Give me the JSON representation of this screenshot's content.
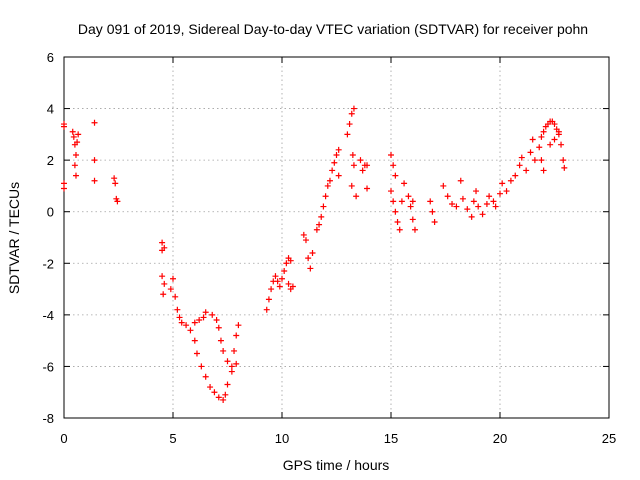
{
  "chart_data": {
    "type": "scatter",
    "title": "Day 091 of 2019, Sidereal Day-to-day VTEC variation (SDTVAR) for receiver pohn",
    "xlabel": "GPS time / hours",
    "ylabel": "SDTVAR / TECUs",
    "xlim": [
      0,
      25
    ],
    "ylim": [
      -8,
      6
    ],
    "x_ticks": [
      0,
      5,
      10,
      15,
      20,
      25
    ],
    "y_ticks": [
      -8,
      -6,
      -4,
      -2,
      0,
      2,
      4,
      6
    ],
    "grid": true,
    "marker": "+",
    "color": "#ff0000",
    "series": [
      {
        "name": "SDTVAR",
        "points": [
          [
            0.0,
            3.4
          ],
          [
            0.0,
            3.3
          ],
          [
            0.0,
            1.1
          ],
          [
            0.0,
            0.9
          ],
          [
            0.4,
            3.1
          ],
          [
            0.45,
            2.9
          ],
          [
            0.5,
            2.6
          ],
          [
            0.55,
            2.2
          ],
          [
            0.5,
            1.8
          ],
          [
            0.55,
            1.4
          ],
          [
            0.6,
            2.7
          ],
          [
            0.65,
            3.0
          ],
          [
            1.4,
            3.45
          ],
          [
            1.4,
            2.0
          ],
          [
            1.4,
            1.2
          ],
          [
            2.3,
            1.3
          ],
          [
            2.35,
            1.1
          ],
          [
            2.4,
            0.5
          ],
          [
            2.45,
            0.4
          ],
          [
            4.5,
            -1.2
          ],
          [
            4.5,
            -1.5
          ],
          [
            4.6,
            -1.4
          ],
          [
            4.5,
            -2.5
          ],
          [
            4.6,
            -2.8
          ],
          [
            4.55,
            -3.2
          ],
          [
            4.9,
            -3.0
          ],
          [
            5.0,
            -2.6
          ],
          [
            5.1,
            -3.3
          ],
          [
            5.2,
            -3.8
          ],
          [
            5.3,
            -4.1
          ],
          [
            5.4,
            -4.3
          ],
          [
            5.6,
            -4.4
          ],
          [
            5.8,
            -4.6
          ],
          [
            6.0,
            -5.0
          ],
          [
            6.1,
            -5.5
          ],
          [
            6.3,
            -6.0
          ],
          [
            6.5,
            -6.4
          ],
          [
            6.7,
            -6.8
          ],
          [
            6.9,
            -7.0
          ],
          [
            7.1,
            -7.2
          ],
          [
            7.3,
            -7.3
          ],
          [
            7.4,
            -7.1
          ],
          [
            7.5,
            -6.7
          ],
          [
            7.7,
            -6.0
          ],
          [
            7.8,
            -5.4
          ],
          [
            7.9,
            -4.8
          ],
          [
            8.0,
            -4.4
          ],
          [
            6.0,
            -4.3
          ],
          [
            6.2,
            -4.2
          ],
          [
            6.4,
            -4.1
          ],
          [
            6.5,
            -3.9
          ],
          [
            6.8,
            -4.0
          ],
          [
            7.0,
            -4.2
          ],
          [
            7.1,
            -4.5
          ],
          [
            7.2,
            -5.0
          ],
          [
            7.3,
            -5.4
          ],
          [
            7.5,
            -5.8
          ],
          [
            7.7,
            -6.2
          ],
          [
            7.9,
            -5.9
          ],
          [
            9.3,
            -3.8
          ],
          [
            9.4,
            -3.4
          ],
          [
            9.5,
            -3.0
          ],
          [
            9.6,
            -2.7
          ],
          [
            9.7,
            -2.5
          ],
          [
            9.8,
            -2.7
          ],
          [
            9.9,
            -2.9
          ],
          [
            10.0,
            -2.6
          ],
          [
            10.1,
            -2.3
          ],
          [
            10.2,
            -2.0
          ],
          [
            10.3,
            -1.8
          ],
          [
            10.4,
            -1.9
          ],
          [
            10.3,
            -2.8
          ],
          [
            10.4,
            -3.0
          ],
          [
            10.5,
            -2.9
          ],
          [
            11.0,
            -0.9
          ],
          [
            11.1,
            -1.1
          ],
          [
            11.2,
            -1.8
          ],
          [
            11.3,
            -2.2
          ],
          [
            11.4,
            -1.6
          ],
          [
            11.6,
            -0.7
          ],
          [
            11.7,
            -0.5
          ],
          [
            11.8,
            -0.2
          ],
          [
            11.9,
            0.2
          ],
          [
            12.0,
            0.6
          ],
          [
            12.1,
            1.0
          ],
          [
            12.2,
            1.2
          ],
          [
            12.3,
            1.6
          ],
          [
            12.4,
            1.9
          ],
          [
            12.5,
            2.2
          ],
          [
            12.6,
            2.4
          ],
          [
            12.6,
            1.4
          ],
          [
            13.0,
            3.0
          ],
          [
            13.1,
            3.4
          ],
          [
            13.2,
            3.8
          ],
          [
            13.3,
            4.0
          ],
          [
            13.25,
            2.2
          ],
          [
            13.3,
            1.8
          ],
          [
            13.2,
            1.0
          ],
          [
            13.4,
            0.6
          ],
          [
            13.6,
            2.0
          ],
          [
            13.7,
            1.6
          ],
          [
            13.8,
            1.8
          ],
          [
            13.9,
            1.8
          ],
          [
            13.9,
            0.9
          ],
          [
            15.0,
            2.2
          ],
          [
            15.1,
            1.8
          ],
          [
            15.2,
            1.4
          ],
          [
            15.0,
            0.8
          ],
          [
            15.1,
            0.4
          ],
          [
            15.2,
            0.0
          ],
          [
            15.3,
            -0.4
          ],
          [
            15.4,
            -0.7
          ],
          [
            15.5,
            0.4
          ],
          [
            15.6,
            1.1
          ],
          [
            15.8,
            0.6
          ],
          [
            15.9,
            0.2
          ],
          [
            16.0,
            -0.3
          ],
          [
            16.1,
            -0.7
          ],
          [
            16.0,
            0.4
          ],
          [
            16.8,
            0.4
          ],
          [
            16.9,
            0.0
          ],
          [
            17.0,
            -0.4
          ],
          [
            17.4,
            1.0
          ],
          [
            17.6,
            0.6
          ],
          [
            17.8,
            0.3
          ],
          [
            18.0,
            0.2
          ],
          [
            18.2,
            1.2
          ],
          [
            18.3,
            0.5
          ],
          [
            18.5,
            0.1
          ],
          [
            18.7,
            -0.2
          ],
          [
            18.8,
            0.4
          ],
          [
            18.9,
            0.8
          ],
          [
            19.0,
            0.2
          ],
          [
            19.2,
            -0.1
          ],
          [
            19.4,
            0.3
          ],
          [
            19.5,
            0.6
          ],
          [
            19.7,
            0.4
          ],
          [
            19.8,
            0.2
          ],
          [
            20.0,
            0.7
          ],
          [
            20.1,
            1.1
          ],
          [
            20.3,
            0.8
          ],
          [
            20.5,
            1.2
          ],
          [
            20.7,
            1.4
          ],
          [
            20.9,
            1.8
          ],
          [
            21.0,
            2.1
          ],
          [
            21.2,
            1.6
          ],
          [
            21.4,
            2.3
          ],
          [
            21.5,
            2.8
          ],
          [
            21.6,
            2.0
          ],
          [
            21.8,
            2.5
          ],
          [
            21.9,
            2.9
          ],
          [
            22.0,
            3.1
          ],
          [
            22.1,
            3.3
          ],
          [
            22.2,
            3.4
          ],
          [
            22.3,
            3.5
          ],
          [
            22.4,
            3.5
          ],
          [
            22.5,
            3.4
          ],
          [
            22.6,
            3.2
          ],
          [
            22.7,
            3.0
          ],
          [
            22.8,
            2.6
          ],
          [
            22.9,
            2.0
          ],
          [
            22.95,
            1.7
          ],
          [
            21.9,
            2.0
          ],
          [
            22.0,
            1.6
          ],
          [
            22.3,
            2.6
          ],
          [
            22.5,
            2.8
          ],
          [
            22.7,
            3.1
          ]
        ]
      }
    ]
  }
}
